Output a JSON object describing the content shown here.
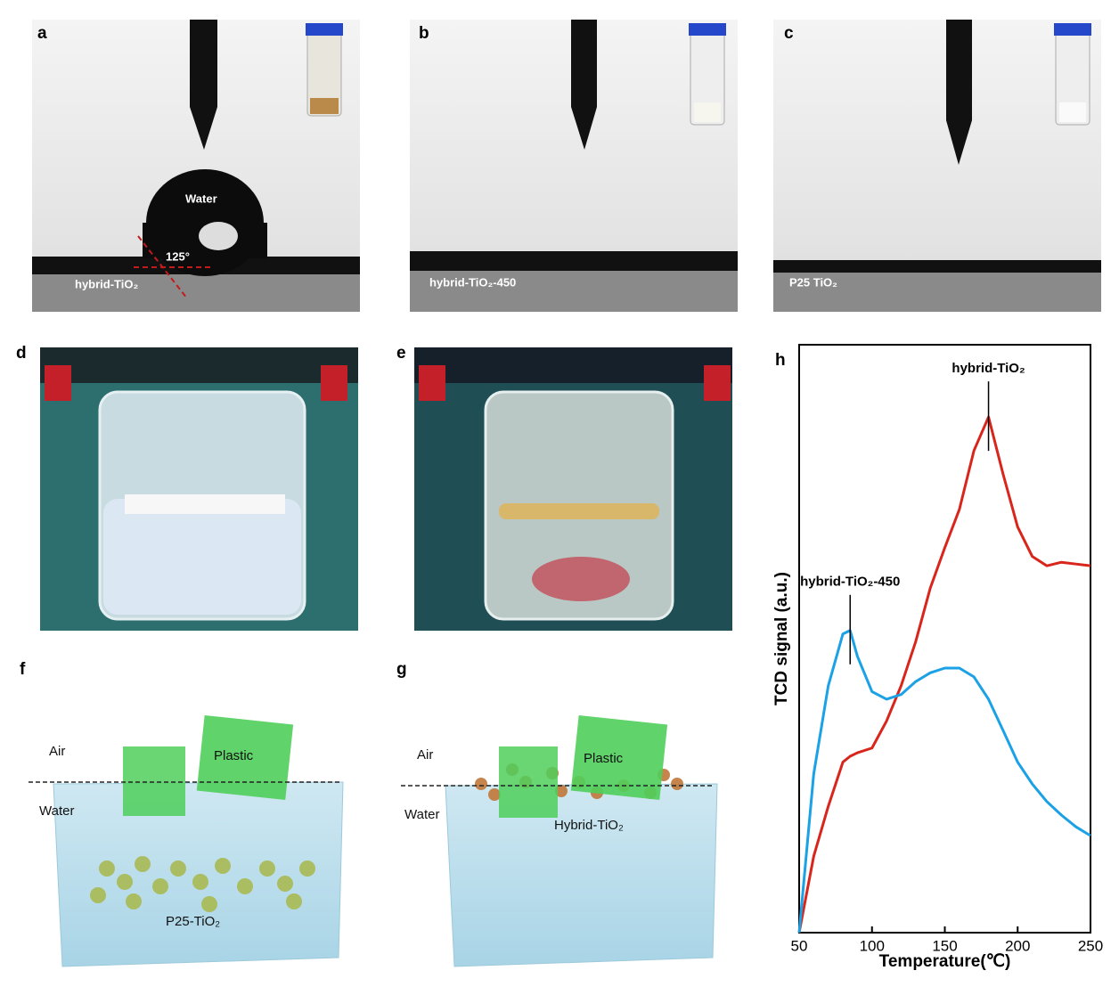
{
  "panels": [
    {
      "label": "a",
      "annotations": [
        "Water",
        "125°",
        "hybrid-TiO₂"
      ]
    },
    {
      "label": "b",
      "annotations": [
        "hybrid-TiO₂-450"
      ]
    },
    {
      "label": "c",
      "annotations": [
        "P25 TiO₂"
      ]
    },
    {
      "label": "d"
    },
    {
      "label": "e"
    },
    {
      "label": "f",
      "annotations": [
        "Air",
        "Water",
        "Plastic",
        "P25-TiO₂"
      ]
    },
    {
      "label": "g",
      "annotations": [
        "Air",
        "Water",
        "Plastic",
        "Hybrid-TiO₂"
      ]
    },
    {
      "label": "h"
    }
  ],
  "chart_data": {
    "type": "line",
    "xlabel": "Temperature(℃)",
    "ylabel": "TCD signal (a.u.)",
    "x": [
      50,
      60,
      70,
      80,
      85,
      90,
      100,
      110,
      120,
      130,
      140,
      150,
      160,
      170,
      180,
      190,
      200,
      210,
      220,
      230,
      240,
      250
    ],
    "series": [
      {
        "name": "hybrid-TiO₂",
        "color": "#d9261c",
        "values": [
          0,
          13,
          21.5,
          29,
          30,
          30.6,
          31.4,
          36,
          42,
          49.5,
          58.6,
          65.5,
          72,
          82,
          87.7,
          78,
          69,
          64,
          62.4,
          63,
          62.7,
          62.4
        ]
      },
      {
        "name": "hybrid-TiO₂-450",
        "color": "#1ba1e6",
        "values": [
          0,
          27,
          42,
          50.8,
          51.4,
          47,
          41,
          39.7,
          40.5,
          42.7,
          44.2,
          45,
          45,
          43.5,
          39.7,
          34.4,
          29,
          25.3,
          22.3,
          20,
          18,
          16.5
        ]
      }
    ],
    "xlim": [
      50,
      250
    ],
    "ylim": [
      0,
      100
    ],
    "xticks": [
      50,
      100,
      150,
      200,
      250
    ],
    "grid": false
  }
}
